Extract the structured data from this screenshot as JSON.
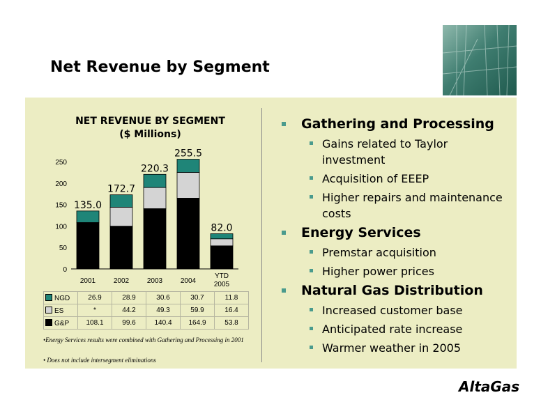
{
  "slide": {
    "title": "Net Revenue by Segment",
    "logo_text": "AltaGas",
    "photo_icon": "industrial-plant-photo"
  },
  "colors": {
    "panel": "#ecedc3",
    "NGD": "#1f8578",
    "ES": "#d4d4d4",
    "GP": "#000000",
    "bullet": "#4a9b8d"
  },
  "chart_data": {
    "type": "bar",
    "stacked": true,
    "title_line1": "NET REVENUE BY SEGMENT",
    "title_line2": "($ Millions)",
    "categories": [
      "2001",
      "2002",
      "2003",
      "2004",
      "YTD 2005"
    ],
    "category_lines": [
      [
        "2001"
      ],
      [
        "2002"
      ],
      [
        "2003"
      ],
      [
        "2004"
      ],
      [
        "YTD",
        "2005"
      ]
    ],
    "ylim": [
      0,
      250
    ],
    "yticks": [
      0,
      50,
      100,
      150,
      200,
      250
    ],
    "totals": [
      "135.0",
      "172.7",
      "220.3",
      "255.5",
      "82.0"
    ],
    "series": [
      {
        "name": "G&P",
        "values": [
          108.1,
          99.6,
          140.4,
          164.9,
          53.8
        ],
        "labels": [
          "108.1",
          "99.6",
          "140.4",
          "164.9",
          "53.8"
        ]
      },
      {
        "name": "ES",
        "values": [
          0,
          44.2,
          49.3,
          59.9,
          16.4
        ],
        "labels": [
          "*",
          "44.2",
          "49.3",
          "59.9",
          "16.4"
        ]
      },
      {
        "name": "NGD",
        "values": [
          26.9,
          28.9,
          30.6,
          30.7,
          11.8
        ],
        "labels": [
          "26.9",
          "28.9",
          "30.6",
          "30.7",
          "11.8"
        ]
      }
    ],
    "table_row_order": [
      "NGD",
      "ES",
      "G&P"
    ],
    "grid": false,
    "legend": "data-table"
  },
  "notes": [
    "•Energy Services results were combined with Gathering and Processing in 2001",
    "• Does not  include  intersegment eliminations"
  ],
  "bullets": [
    {
      "heading": "Gathering and Processing",
      "items": [
        "Gains related to Taylor investment",
        "Acquisition of EEEP",
        "Higher repairs and maintenance costs"
      ]
    },
    {
      "heading": "Energy Services",
      "items": [
        "Premstar acquisition",
        "Higher power prices"
      ]
    },
    {
      "heading": "Natural Gas Distribution",
      "items": [
        "Increased customer base",
        "Anticipated rate increase",
        "Warmer weather in 2005"
      ]
    }
  ]
}
